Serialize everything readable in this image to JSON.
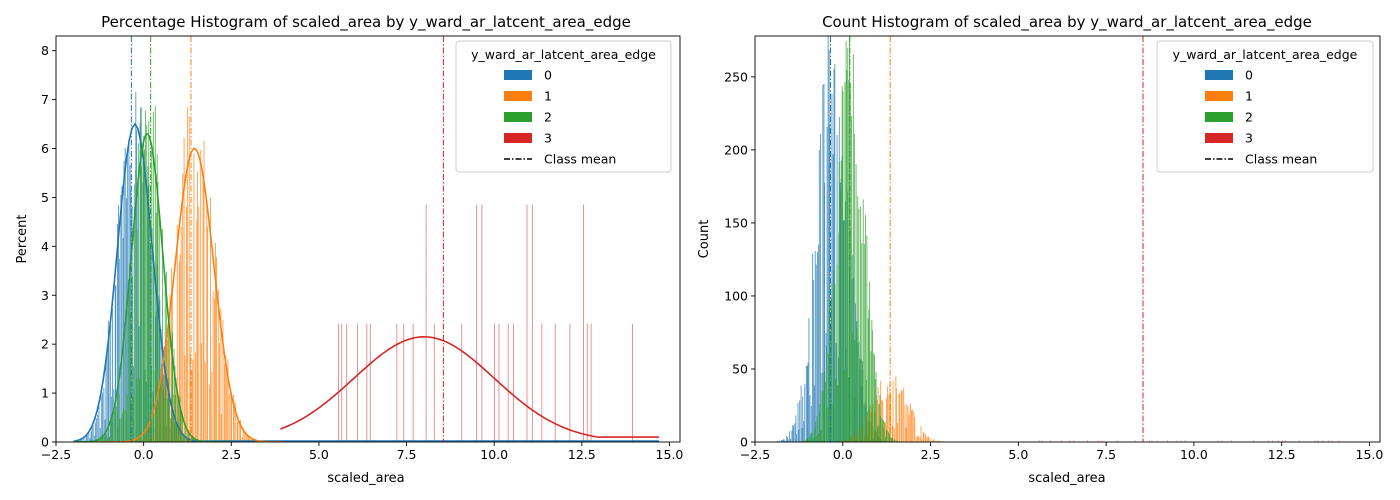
{
  "chart_data": [
    {
      "type": "histogram",
      "title": "Percentage Histogram of scaled_area by y_ward_ar_latcent_area_edge",
      "xlabel": "scaled_area",
      "ylabel": "Percent",
      "xlim": [
        -2.5,
        15.3
      ],
      "ylim": [
        0,
        8.3
      ],
      "xticks": [
        -2.5,
        0.0,
        2.5,
        5.0,
        7.5,
        10.0,
        12.5,
        15.0
      ],
      "xtick_labels": [
        "−2.5",
        "0.0",
        "2.5",
        "5.0",
        "7.5",
        "10.0",
        "12.5",
        "15.0"
      ],
      "yticks": [
        0,
        1,
        2,
        3,
        4,
        5,
        6,
        7,
        8
      ],
      "ytick_labels": [
        "0",
        "1",
        "2",
        "3",
        "4",
        "5",
        "6",
        "7",
        "8"
      ],
      "kde": true,
      "legend": {
        "title": "y_ward_ar_latcent_area_edge",
        "placement": "top-right",
        "entries": [
          "0",
          "1",
          "2",
          "3"
        ],
        "mean_label": "Class mean"
      },
      "series": [
        {
          "name": "0",
          "color": "#1f77b4",
          "mean": -0.35,
          "mu": -0.25,
          "sigma": 0.5,
          "peak": 6.5
        },
        {
          "name": "1",
          "color": "#ff7f0e",
          "mean": 1.35,
          "mu": 1.45,
          "sigma": 0.55,
          "peak": 6.0
        },
        {
          "name": "2",
          "color": "#2ca02c",
          "mean": 0.2,
          "mu": 0.1,
          "sigma": 0.45,
          "peak": 6.3
        },
        {
          "name": "3",
          "color": "#d62728",
          "mean": 8.55,
          "mu": 8.0,
          "sigma": 2.0,
          "peak": 2.15
        }
      ]
    },
    {
      "type": "histogram",
      "title": "Count Histogram of scaled_area by y_ward_ar_latcent_area_edge",
      "xlabel": "scaled_area",
      "ylabel": "Count",
      "xlim": [
        -2.5,
        15.3
      ],
      "ylim": [
        0,
        278
      ],
      "xticks": [
        -2.5,
        0.0,
        2.5,
        5.0,
        7.5,
        10.0,
        12.5,
        15.0
      ],
      "xtick_labels": [
        "−2.5",
        "0.0",
        "2.5",
        "5.0",
        "7.5",
        "10.0",
        "12.5",
        "15.0"
      ],
      "yticks": [
        0,
        50,
        100,
        150,
        200,
        250
      ],
      "ytick_labels": [
        "0",
        "50",
        "100",
        "150",
        "200",
        "250"
      ],
      "kde": false,
      "legend": {
        "title": "y_ward_ar_latcent_area_edge",
        "placement": "top-right",
        "entries": [
          "0",
          "1",
          "2",
          "3"
        ],
        "mean_label": "Class mean"
      },
      "series": [
        {
          "name": "0",
          "color": "#1f77b4",
          "mean": -0.35,
          "mu": -0.3,
          "sigma": 0.45,
          "peak": 245
        },
        {
          "name": "1",
          "color": "#ff7f0e",
          "mean": 1.35,
          "mu": 1.35,
          "sigma": 0.5,
          "peak": 40
        },
        {
          "name": "2",
          "color": "#2ca02c",
          "mean": 0.2,
          "mu": 0.2,
          "sigma": 0.4,
          "peak": 240
        },
        {
          "name": "3",
          "color": "#d62728",
          "mean": 8.55,
          "mu": 8.5,
          "sigma": 2.0,
          "peak": 1
        }
      ]
    }
  ]
}
